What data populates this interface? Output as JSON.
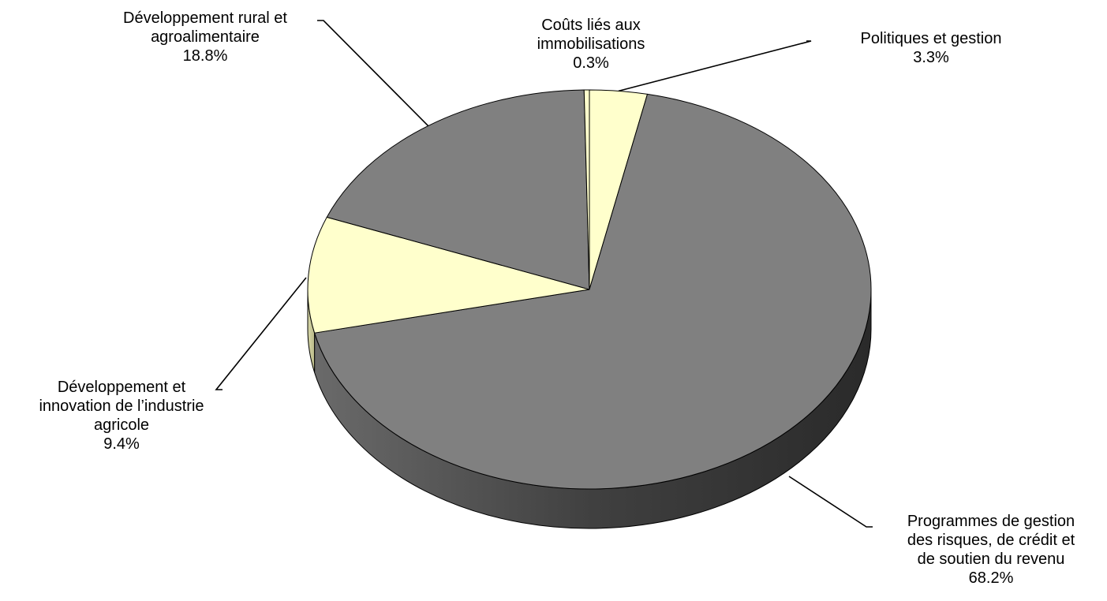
{
  "chart_data": {
    "type": "pie",
    "title": "",
    "style": "3d",
    "start": "top",
    "direction": "clockwise",
    "legend": "none",
    "slices": [
      {
        "label": [
          "Politiques et gestion"
        ],
        "value": 3.3,
        "value_label": "3.3%",
        "color": "#ffffcc"
      },
      {
        "label": [
          "Programmes de gestion",
          "des risques, de crédit et",
          "de soutien du revenu"
        ],
        "value": 68.2,
        "value_label": "68.2%",
        "color": "#808080"
      },
      {
        "label": [
          "Développement et",
          "innovation de l’industrie",
          "agricole"
        ],
        "value": 9.4,
        "value_label": "9.4%",
        "color": "#ffffcc"
      },
      {
        "label": [
          "Développement rural et",
          "agroalimentaire"
        ],
        "value": 18.8,
        "value_label": "18.8%",
        "color": "#808080"
      },
      {
        "label": [
          "Coûts liés aux",
          "immobilisations"
        ],
        "value": 0.3,
        "value_label": "0.3%",
        "color": "#ffffcc"
      }
    ]
  }
}
